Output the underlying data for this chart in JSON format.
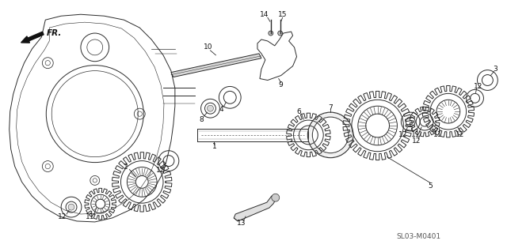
{
  "bg_color": "#ffffff",
  "line_color": "#2a2a2a",
  "catalog_id": "SL03-M0401",
  "lw": 0.7
}
